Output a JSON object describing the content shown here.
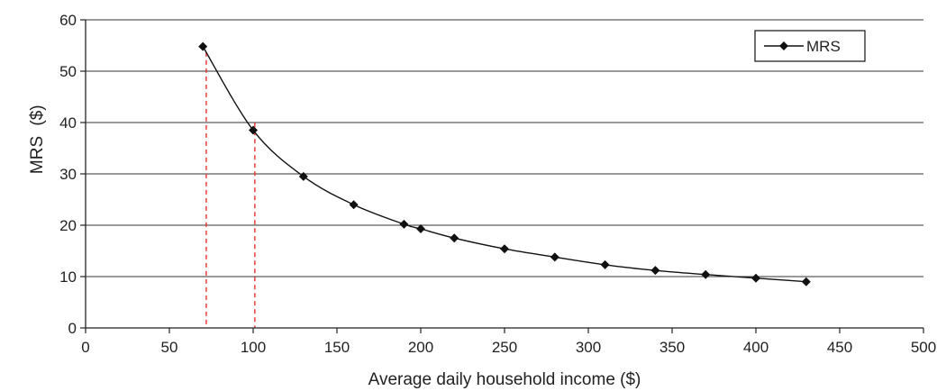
{
  "chart_data": {
    "type": "line",
    "xlabel": "Average daily household income ($)",
    "ylabel_main": "MRS",
    "ylabel_unit": "($)",
    "xlim": [
      0,
      500
    ],
    "ylim": [
      0,
      60
    ],
    "x_ticks": [
      0,
      50,
      100,
      150,
      200,
      250,
      300,
      350,
      400,
      450,
      500
    ],
    "y_ticks": [
      0,
      10,
      20,
      30,
      40,
      50,
      60
    ],
    "grid": "horizontal",
    "legend_position": "top-right",
    "series": [
      {
        "name": "MRS",
        "color": "#111111",
        "marker": "diamond",
        "x": [
          70,
          100,
          130,
          160,
          190,
          200,
          220,
          250,
          280,
          310,
          340,
          370,
          400,
          430
        ],
        "y": [
          54.8,
          38.5,
          29.5,
          24.0,
          20.2,
          19.3,
          17.5,
          15.4,
          13.8,
          12.3,
          11.2,
          10.4,
          9.7,
          9.0
        ]
      }
    ],
    "reference_lines": [
      {
        "x": 72,
        "color": "#e8312a",
        "style": "dashed"
      },
      {
        "x": 101,
        "color": "#e8312a",
        "style": "dashed"
      }
    ]
  }
}
